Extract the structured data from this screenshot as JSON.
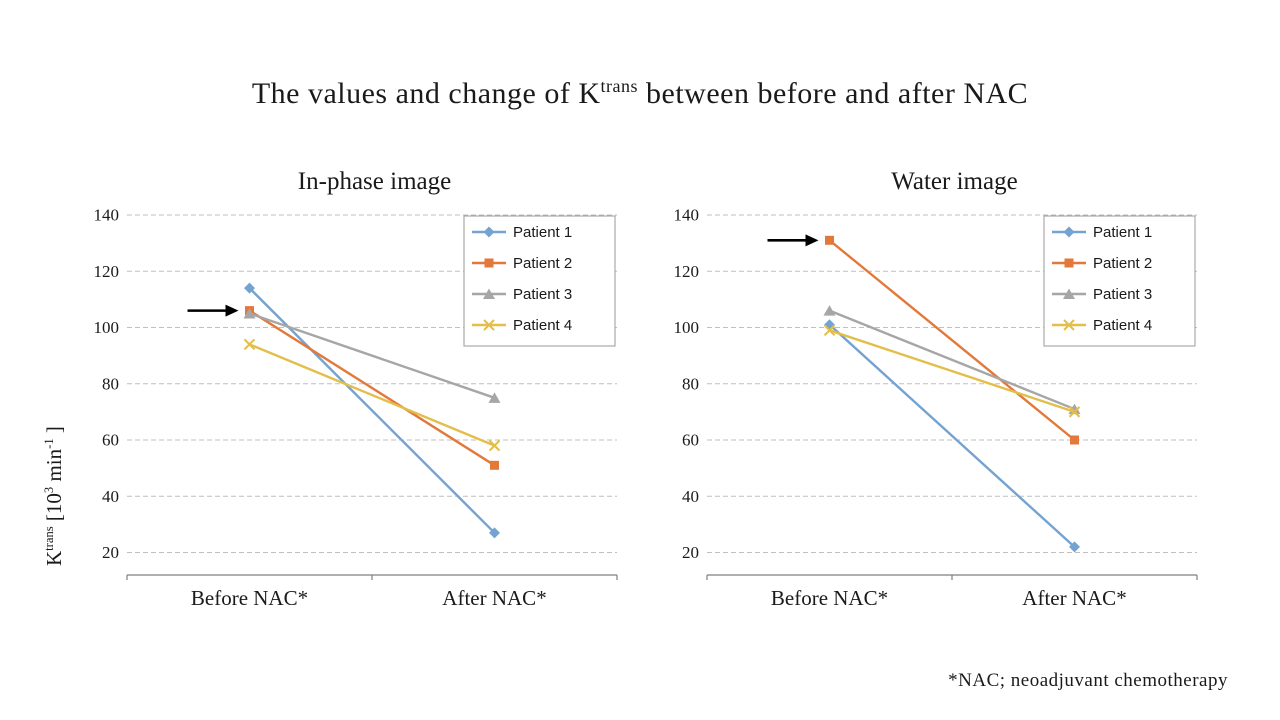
{
  "page": {
    "title": {
      "pre": "The values and change of K",
      "sup": "trans",
      "post": " between before and after NAC"
    },
    "ylabel": {
      "base1": "K",
      "sup1": "trans",
      "base2": "  [10",
      "sup2": "3",
      "base3": " min",
      "sup3": "-1",
      "base4": " ]"
    },
    "footnote": "*NAC; neoadjuvant chemotherapy"
  },
  "chart_data": [
    {
      "type": "line",
      "title": "In-phase image",
      "categories": [
        "Before NAC*",
        "After NAC*"
      ],
      "series": [
        {
          "name": "Patient 1",
          "color": "#75A3D1",
          "marker": "diamond",
          "values": [
            114,
            27
          ]
        },
        {
          "name": "Patient 2",
          "color": "#E2793B",
          "marker": "square",
          "values": [
            106,
            51
          ]
        },
        {
          "name": "Patient 3",
          "color": "#A6A6A6",
          "marker": "triangle",
          "values": [
            105,
            75
          ]
        },
        {
          "name": "Patient 4",
          "color": "#E3BE4B",
          "marker": "x",
          "values": [
            94,
            58
          ]
        }
      ],
      "ylim": [
        20,
        140
      ],
      "yticks": [
        20,
        40,
        60,
        80,
        100,
        120,
        140
      ],
      "grid": "dashed-horizontal",
      "legend_position": "top-right",
      "annotation": {
        "type": "arrow",
        "series": "Patient 2",
        "category_index": 0
      }
    },
    {
      "type": "line",
      "title": "Water image",
      "categories": [
        "Before NAC*",
        "After NAC*"
      ],
      "series": [
        {
          "name": "Patient 1",
          "color": "#75A3D1",
          "marker": "diamond",
          "values": [
            101,
            22
          ]
        },
        {
          "name": "Patient 2",
          "color": "#E2793B",
          "marker": "square",
          "values": [
            131,
            60
          ]
        },
        {
          "name": "Patient 3",
          "color": "#A6A6A6",
          "marker": "triangle",
          "values": [
            106,
            71
          ]
        },
        {
          "name": "Patient 4",
          "color": "#E3BE4B",
          "marker": "x",
          "values": [
            99,
            70
          ]
        }
      ],
      "ylim": [
        20,
        140
      ],
      "yticks": [
        20,
        40,
        60,
        80,
        100,
        120,
        140
      ],
      "grid": "dashed-horizontal",
      "legend_position": "top-right",
      "annotation": {
        "type": "arrow",
        "series": "Patient 2",
        "category_index": 0
      }
    }
  ]
}
